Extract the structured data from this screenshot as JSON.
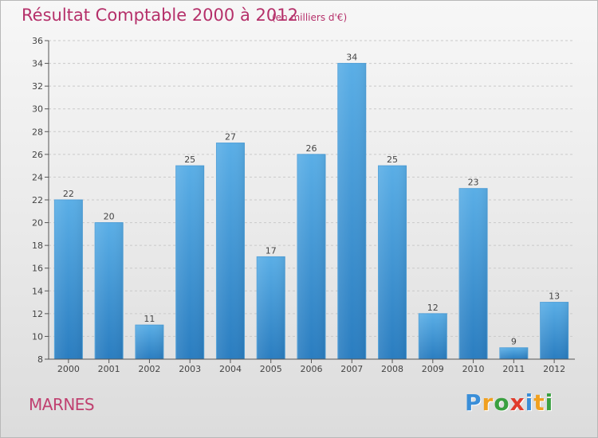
{
  "chart_data": {
    "type": "bar",
    "title": "Résultat Comptable 2000 à 2012",
    "subtitle": "(en milliers d'€)",
    "categories": [
      "2000",
      "2001",
      "2002",
      "2003",
      "2004",
      "2005",
      "2006",
      "2007",
      "2008",
      "2009",
      "2010",
      "2011",
      "2012"
    ],
    "values": [
      22,
      20,
      11,
      25,
      27,
      17,
      26,
      34,
      25,
      12,
      23,
      9,
      13
    ],
    "ylim": [
      8,
      36
    ],
    "yticks": [
      8,
      10,
      12,
      14,
      16,
      18,
      20,
      22,
      24,
      26,
      28,
      30,
      32,
      34,
      36
    ],
    "xlabel": "",
    "ylabel": "",
    "grid": true,
    "bar_color_top": "#5aaee6",
    "bar_color_bottom": "#2a7dc0"
  },
  "footer": {
    "commune": "MARNES",
    "logo_letters": [
      "P",
      "r",
      "o",
      "x",
      "i",
      "t",
      "i"
    ],
    "logo_colors": [
      "#3a8ed8",
      "#f0a020",
      "#3aa040",
      "#e03c2c",
      "#3a8ed8",
      "#f0a020",
      "#3aa040"
    ]
  }
}
